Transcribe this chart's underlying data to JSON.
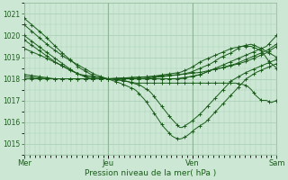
{
  "background_color": "#cce8d4",
  "grid_color": "#aaccb4",
  "line_color": "#1a5c1a",
  "xlabel": "Pression niveau de la mer( hPa )",
  "xtick_labels": [
    "Mer",
    "Jeu",
    "Ven",
    "Sam"
  ],
  "ylim": [
    1014.5,
    1021.5
  ],
  "yticks": [
    1015,
    1016,
    1017,
    1018,
    1019,
    1020,
    1021
  ],
  "n_points": 100,
  "series_keypts": [
    [
      [
        0,
        1020.8
      ],
      [
        8,
        1020.0
      ],
      [
        15,
        1019.2
      ],
      [
        22,
        1018.5
      ],
      [
        28,
        1018.1
      ],
      [
        33,
        1018.0
      ],
      [
        38,
        1017.8
      ],
      [
        44,
        1017.5
      ],
      [
        48,
        1017.0
      ],
      [
        51,
        1016.5
      ],
      [
        55,
        1015.8
      ],
      [
        59,
        1015.3
      ],
      [
        62,
        1015.2
      ],
      [
        65,
        1015.4
      ],
      [
        68,
        1015.7
      ],
      [
        72,
        1016.0
      ],
      [
        76,
        1016.5
      ],
      [
        80,
        1017.0
      ],
      [
        84,
        1017.5
      ],
      [
        88,
        1018.0
      ],
      [
        92,
        1018.3
      ],
      [
        96,
        1018.5
      ],
      [
        100,
        1018.7
      ]
    ],
    [
      [
        0,
        1020.0
      ],
      [
        8,
        1019.3
      ],
      [
        14,
        1018.8
      ],
      [
        20,
        1018.3
      ],
      [
        26,
        1018.0
      ],
      [
        33,
        1018.0
      ],
      [
        40,
        1017.9
      ],
      [
        46,
        1017.7
      ],
      [
        50,
        1017.4
      ],
      [
        54,
        1016.8
      ],
      [
        58,
        1016.2
      ],
      [
        62,
        1015.7
      ],
      [
        66,
        1016.0
      ],
      [
        70,
        1016.4
      ],
      [
        74,
        1016.9
      ],
      [
        78,
        1017.4
      ],
      [
        82,
        1017.9
      ],
      [
        88,
        1018.3
      ],
      [
        92,
        1018.5
      ],
      [
        96,
        1018.7
      ],
      [
        100,
        1018.9
      ]
    ],
    [
      [
        0,
        1019.4
      ],
      [
        8,
        1019.0
      ],
      [
        15,
        1018.6
      ],
      [
        22,
        1018.2
      ],
      [
        28,
        1018.1
      ],
      [
        33,
        1018.0
      ],
      [
        38,
        1018.0
      ],
      [
        44,
        1018.0
      ],
      [
        50,
        1018.0
      ],
      [
        56,
        1018.0
      ],
      [
        62,
        1018.0
      ],
      [
        66,
        1018.1
      ],
      [
        70,
        1018.2
      ],
      [
        74,
        1018.4
      ],
      [
        78,
        1018.5
      ],
      [
        82,
        1018.6
      ],
      [
        88,
        1018.8
      ],
      [
        92,
        1019.0
      ],
      [
        96,
        1019.2
      ],
      [
        100,
        1019.5
      ]
    ],
    [
      [
        0,
        1018.2
      ],
      [
        6,
        1018.1
      ],
      [
        12,
        1018.0
      ],
      [
        20,
        1018.0
      ],
      [
        33,
        1018.0
      ],
      [
        50,
        1018.1
      ],
      [
        62,
        1018.2
      ],
      [
        70,
        1018.3
      ],
      [
        78,
        1018.5
      ],
      [
        84,
        1018.7
      ],
      [
        88,
        1018.9
      ],
      [
        92,
        1019.1
      ],
      [
        96,
        1019.3
      ],
      [
        100,
        1019.6
      ]
    ],
    [
      [
        0,
        1018.1
      ],
      [
        10,
        1018.0
      ],
      [
        20,
        1018.0
      ],
      [
        33,
        1018.0
      ],
      [
        45,
        1018.0
      ],
      [
        55,
        1018.1
      ],
      [
        62,
        1018.2
      ],
      [
        66,
        1018.3
      ],
      [
        70,
        1018.5
      ],
      [
        74,
        1018.7
      ],
      [
        78,
        1019.0
      ],
      [
        82,
        1019.2
      ],
      [
        86,
        1019.5
      ],
      [
        90,
        1019.6
      ],
      [
        94,
        1019.4
      ],
      [
        97,
        1019.2
      ],
      [
        100,
        1019.0
      ]
    ],
    [
      [
        0,
        1018.0
      ],
      [
        10,
        1018.0
      ],
      [
        20,
        1018.0
      ],
      [
        33,
        1018.0
      ],
      [
        50,
        1018.1
      ],
      [
        62,
        1018.3
      ],
      [
        66,
        1018.5
      ],
      [
        70,
        1018.8
      ],
      [
        74,
        1019.0
      ],
      [
        78,
        1019.2
      ],
      [
        82,
        1019.4
      ],
      [
        86,
        1019.5
      ],
      [
        90,
        1019.5
      ],
      [
        94,
        1019.3
      ],
      [
        97,
        1018.8
      ],
      [
        100,
        1018.5
      ]
    ],
    [
      [
        0,
        1019.8
      ],
      [
        6,
        1019.3
      ],
      [
        12,
        1018.8
      ],
      [
        18,
        1018.4
      ],
      [
        24,
        1018.1
      ],
      [
        30,
        1018.0
      ],
      [
        36,
        1018.0
      ],
      [
        42,
        1018.0
      ],
      [
        50,
        1018.0
      ],
      [
        60,
        1018.0
      ],
      [
        66,
        1018.1
      ],
      [
        70,
        1018.2
      ],
      [
        74,
        1018.4
      ],
      [
        78,
        1018.6
      ],
      [
        84,
        1018.9
      ],
      [
        88,
        1019.1
      ],
      [
        92,
        1019.3
      ],
      [
        96,
        1019.5
      ],
      [
        100,
        1020.0
      ]
    ],
    [
      [
        0,
        1020.5
      ],
      [
        5,
        1020.0
      ],
      [
        10,
        1019.5
      ],
      [
        16,
        1019.0
      ],
      [
        22,
        1018.6
      ],
      [
        28,
        1018.2
      ],
      [
        33,
        1018.0
      ],
      [
        36,
        1018.0
      ],
      [
        40,
        1017.9
      ],
      [
        44,
        1017.8
      ],
      [
        50,
        1017.8
      ],
      [
        56,
        1017.8
      ],
      [
        62,
        1017.8
      ],
      [
        68,
        1017.8
      ],
      [
        72,
        1017.8
      ],
      [
        78,
        1017.8
      ],
      [
        84,
        1017.8
      ],
      [
        88,
        1017.7
      ],
      [
        90,
        1017.5
      ],
      [
        92,
        1017.2
      ],
      [
        94,
        1017.0
      ],
      [
        96,
        1017.0
      ],
      [
        98,
        1016.9
      ],
      [
        100,
        1017.0
      ]
    ]
  ]
}
